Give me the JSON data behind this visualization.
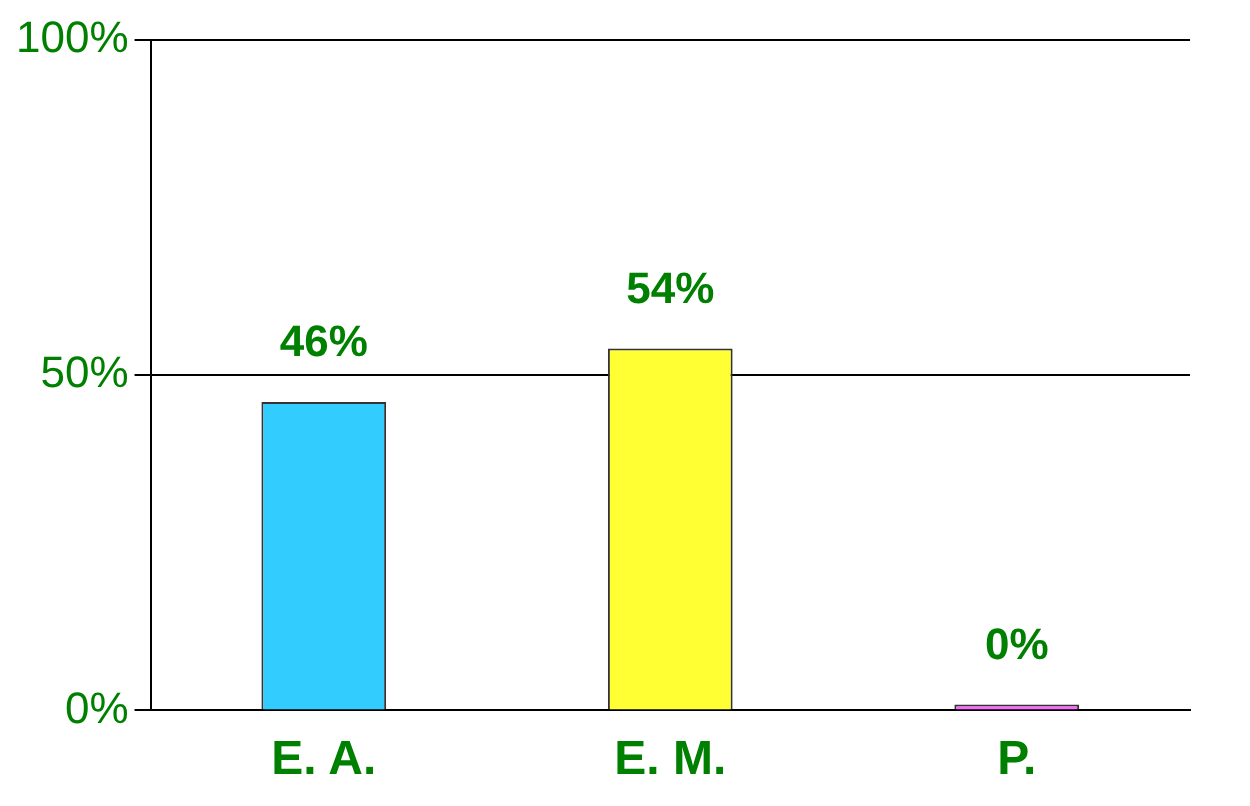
{
  "chart_data": {
    "type": "bar",
    "categories": [
      "E. A.",
      "E. M.",
      "P."
    ],
    "values": [
      46,
      54,
      0
    ],
    "colors": [
      "#33ccff",
      "#ffff33",
      "#ff66ff"
    ],
    "value_labels": [
      "46%",
      "54%",
      "0%"
    ],
    "ylim": [
      0,
      100
    ],
    "yticks": [
      {
        "value": 0,
        "label": "0%"
      },
      {
        "value": 50,
        "label": "50%"
      },
      {
        "value": 100,
        "label": "100%"
      }
    ],
    "grid": "y"
  }
}
